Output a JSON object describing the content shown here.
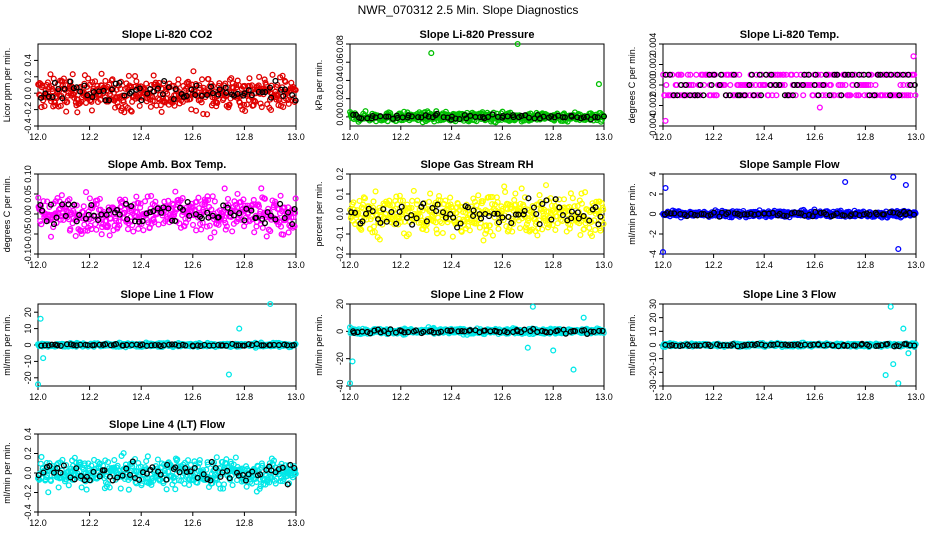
{
  "figure": {
    "title": "NWR_070312  2.5 Min. Slope Diagnostics"
  },
  "chart_data": [
    {
      "type": "scatter",
      "title": "Slope Li-820 CO2",
      "ylabel": "Licor ppm per min.",
      "xlabel": "",
      "xlim": [
        12.0,
        13.0
      ],
      "ylim": [
        -0.4,
        0.6
      ],
      "xticks": [
        "12.0",
        "12.2",
        "12.4",
        "12.6",
        "12.8",
        "13.0"
      ],
      "yticks": [
        "-0.4",
        "-0.2",
        "0.0",
        "0.2",
        "0.4"
      ],
      "color": "#e00000",
      "pattern": "noise",
      "center": 0.0,
      "spread": 0.2,
      "black_spread": 0.12
    },
    {
      "type": "scatter",
      "title": "Slope Li-820 Pressure",
      "ylabel": "kPa per min.",
      "xlabel": "",
      "xlim": [
        12.0,
        13.0
      ],
      "ylim": [
        -0.01,
        0.08
      ],
      "xticks": [
        "12.0",
        "12.2",
        "12.4",
        "12.6",
        "12.8",
        "13.0"
      ],
      "yticks": [
        "0.00",
        "0.02",
        "0.04",
        "0.06",
        "0.08"
      ],
      "color": "#00c000",
      "pattern": "narrow",
      "center": 0.0,
      "spread": 0.005,
      "black_spread": 0.003,
      "outliers": [
        [
          12.32,
          0.07
        ],
        [
          12.66,
          0.08
        ],
        [
          12.98,
          0.036
        ]
      ]
    },
    {
      "type": "scatter",
      "title": "Slope Li-820 Temp.",
      "ylabel": "degrees C per min.",
      "xlabel": "",
      "xlim": [
        12.0,
        13.0
      ],
      "ylim": [
        -0.004,
        0.004
      ],
      "xticks": [
        "12.0",
        "12.2",
        "12.4",
        "12.6",
        "12.8",
        "13.0"
      ],
      "yticks": [
        "-0.004",
        "-0.002",
        "0.000",
        "0.002",
        "0.004"
      ],
      "color": "#ff00ff",
      "pattern": "levels",
      "levels": [
        -0.001,
        0.0,
        0.001
      ],
      "outliers": [
        [
          12.01,
          -0.0035
        ],
        [
          12.99,
          0.0028
        ],
        [
          12.62,
          -0.0022
        ]
      ]
    },
    {
      "type": "scatter",
      "title": "Slope Amb. Box Temp.",
      "ylabel": "degrees C per min.",
      "xlabel": "",
      "xlim": [
        12.0,
        13.0
      ],
      "ylim": [
        -0.1,
        0.1
      ],
      "xticks": [
        "12.0",
        "12.2",
        "12.4",
        "12.6",
        "12.8",
        "13.0"
      ],
      "yticks": [
        "-0.10",
        "-0.05",
        "0.00",
        "0.05",
        "0.10"
      ],
      "color": "#ff00ff",
      "pattern": "noise",
      "center": 0.0,
      "spread": 0.045,
      "black_spread": 0.03
    },
    {
      "type": "scatter",
      "title": "Slope Gas Stream RH",
      "ylabel": "percent per min.",
      "xlabel": "",
      "xlim": [
        12.0,
        13.0
      ],
      "ylim": [
        -0.2,
        0.2
      ],
      "xticks": [
        "12.0",
        "12.2",
        "12.4",
        "12.6",
        "12.8",
        "13.0"
      ],
      "yticks": [
        "-0.2",
        "-0.1",
        "0.0",
        "0.1",
        "0.2"
      ],
      "color": "#ffff00",
      "pattern": "noise",
      "center": 0.0,
      "spread": 0.1,
      "black_spread": 0.07
    },
    {
      "type": "scatter",
      "title": "Slope Sample Flow",
      "ylabel": "ml/min per min.",
      "xlabel": "",
      "xlim": [
        12.0,
        13.0
      ],
      "ylim": [
        -4,
        4
      ],
      "xticks": [
        "12.0",
        "12.2",
        "12.4",
        "12.6",
        "12.8",
        "13.0"
      ],
      "yticks": [
        "-4",
        "-2",
        "0",
        "2",
        "4"
      ],
      "color": "#0000ff",
      "pattern": "narrow",
      "center": 0.0,
      "spread": 0.3,
      "black_spread": 0.2,
      "outliers": [
        [
          12.0,
          -3.8
        ],
        [
          12.01,
          2.6
        ],
        [
          12.72,
          3.2
        ],
        [
          12.91,
          3.7
        ],
        [
          12.93,
          -3.5
        ],
        [
          12.96,
          2.9
        ]
      ]
    },
    {
      "type": "scatter",
      "title": "Slope Line 1 Flow",
      "ylabel": "ml/min per min.",
      "xlabel": "",
      "xlim": [
        12.0,
        13.0
      ],
      "ylim": [
        -25,
        25
      ],
      "xticks": [
        "12.0",
        "12.2",
        "12.4",
        "12.6",
        "12.8",
        "13.0"
      ],
      "yticks": [
        "-20",
        "-10",
        "0",
        "10",
        "20"
      ],
      "color": "#00e8e8",
      "pattern": "narrow",
      "center": 0.0,
      "spread": 1.2,
      "black_spread": 0.6,
      "outliers": [
        [
          12.0,
          -24
        ],
        [
          12.01,
          16
        ],
        [
          12.02,
          -8
        ],
        [
          12.74,
          -18
        ],
        [
          12.78,
          10
        ],
        [
          12.9,
          25
        ]
      ]
    },
    {
      "type": "scatter",
      "title": "Slope Line 2 Flow",
      "ylabel": "ml/min per min.",
      "xlabel": "",
      "xlim": [
        12.0,
        13.0
      ],
      "ylim": [
        -40,
        20
      ],
      "xticks": [
        "12.0",
        "12.2",
        "12.4",
        "12.6",
        "12.8",
        "13.0"
      ],
      "yticks": [
        "-40",
        "-20",
        "0",
        "20"
      ],
      "color": "#00e8e8",
      "pattern": "narrow",
      "center": 0.0,
      "spread": 2.0,
      "black_spread": 1.5,
      "outliers": [
        [
          12.0,
          -38
        ],
        [
          12.01,
          -22
        ],
        [
          12.7,
          -12
        ],
        [
          12.72,
          18
        ],
        [
          12.8,
          -14
        ],
        [
          12.88,
          -28
        ],
        [
          12.92,
          10
        ]
      ]
    },
    {
      "type": "scatter",
      "title": "Slope Line 3 Flow",
      "ylabel": "ml/min per min.",
      "xlabel": "",
      "xlim": [
        12.0,
        13.0
      ],
      "ylim": [
        -30,
        30
      ],
      "xticks": [
        "12.0",
        "12.2",
        "12.4",
        "12.6",
        "12.8",
        "13.0"
      ],
      "yticks": [
        "-30",
        "-20",
        "-10",
        "0",
        "10",
        "20",
        "30"
      ],
      "color": "#00e8e8",
      "pattern": "narrow",
      "center": 0.0,
      "spread": 1.2,
      "black_spread": 1.0,
      "outliers": [
        [
          12.88,
          -22
        ],
        [
          12.9,
          28
        ],
        [
          12.91,
          -14
        ],
        [
          12.93,
          -28
        ],
        [
          12.95,
          12
        ],
        [
          12.97,
          -6
        ]
      ]
    },
    {
      "type": "scatter",
      "title": "Slope Line 4 (LT) Flow",
      "ylabel": "ml/min per min.",
      "xlabel": "",
      "xlim": [
        12.0,
        13.0
      ],
      "ylim": [
        -0.4,
        0.4
      ],
      "xticks": [
        "12.0",
        "12.2",
        "12.4",
        "12.6",
        "12.8",
        "13.0"
      ],
      "yticks": [
        "-0.4",
        "-0.2",
        "0.0",
        "0.2",
        "0.4"
      ],
      "color": "#00e8e8",
      "pattern": "noise",
      "center": 0.0,
      "spread": 0.15,
      "black_spread": 0.1
    }
  ]
}
